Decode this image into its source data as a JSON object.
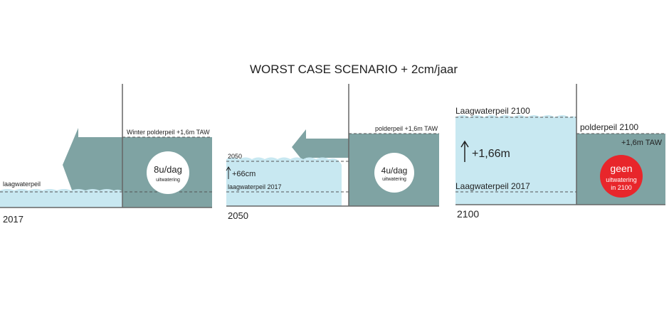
{
  "title": "WORST CASE SCENARIO + 2cm/jaar",
  "panels": [
    {
      "year": "2017",
      "water_label": "laagwaterpeil",
      "polder_label": "Winter polderpeil  +1,6m TAW",
      "circle": [
        "8u/dag",
        "uitwatering"
      ]
    },
    {
      "year": "2050",
      "water_label": "2050",
      "rise": "+66cm",
      "old_label": "laagwaterpeil 2017",
      "polder_label": "polderpeil +1,6m TAW",
      "circle": [
        "4u/dag",
        "uitwatering"
      ]
    },
    {
      "year": "2100",
      "water_label": "Laagwaterpeil 2100",
      "rise": "+1,66m",
      "old_label": "Laagwaterpeil 2017",
      "polder_label": "polderpeil 2100",
      "polder_level": "+1,6m TAW",
      "circle": [
        "geen",
        "uitwatering",
        "in 2100"
      ]
    }
  ]
}
